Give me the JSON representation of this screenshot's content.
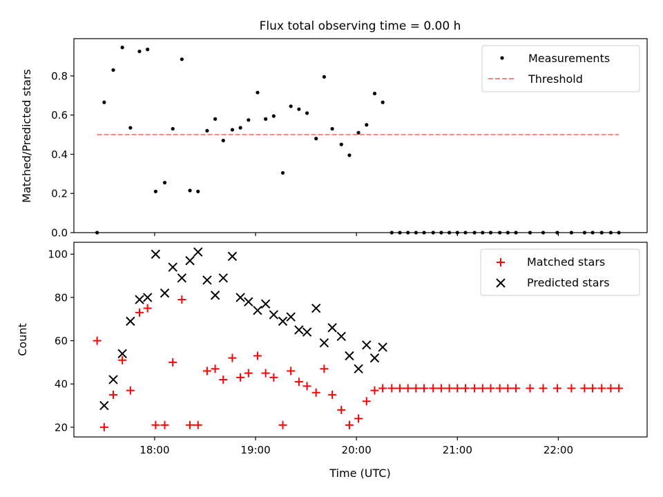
{
  "title": "Flux total observing time = 0.00 h",
  "chart_data": [
    {
      "type": "scatter",
      "ylabel": "Matched/Predicted stars",
      "xlabel": "",
      "xlim_hours": [
        17.2,
        22.88
      ],
      "ylim": [
        0,
        0.99
      ],
      "yticks": [
        0.0,
        0.2,
        0.4,
        0.6,
        0.8
      ],
      "ytick_labels": [
        "0.0",
        "0.2",
        "0.4",
        "0.6",
        "0.8"
      ],
      "grid": false,
      "legend": {
        "placement": "top-right",
        "items": [
          {
            "label": "Measurements",
            "marker": "dot",
            "color": "#000000"
          },
          {
            "label": "Threshold",
            "marker": "dashed-line",
            "color": "#ff7f7f"
          }
        ]
      },
      "series": [
        {
          "name": "Measurements",
          "color": "#000000",
          "marker": "dot",
          "x": [
            17.43,
            17.5,
            17.59,
            17.68,
            17.76,
            17.85,
            17.93,
            18.01,
            18.1,
            18.18,
            18.27,
            18.35,
            18.43,
            18.52,
            18.6,
            18.68,
            18.77,
            18.85,
            18.93,
            19.02,
            19.1,
            19.18,
            19.27,
            19.35,
            19.43,
            19.51,
            19.6,
            19.68,
            19.76,
            19.85,
            19.93,
            20.02,
            20.1,
            20.18,
            20.26,
            20.35,
            20.43,
            20.51,
            20.59,
            20.67,
            20.76,
            20.84,
            20.92,
            21.0,
            21.08,
            21.17,
            21.25,
            21.33,
            21.42,
            21.5,
            21.58,
            21.72,
            21.85,
            21.99,
            22.13,
            22.26,
            22.34,
            22.43,
            22.52,
            22.6
          ],
          "y": [
            0.0,
            0.665,
            0.83,
            0.945,
            0.535,
            0.925,
            0.935,
            0.21,
            0.255,
            0.53,
            0.885,
            0.215,
            0.21,
            0.52,
            0.58,
            0.47,
            0.525,
            0.535,
            0.575,
            0.715,
            0.58,
            0.595,
            0.305,
            0.645,
            0.63,
            0.61,
            0.48,
            0.795,
            0.53,
            0.45,
            0.395,
            0.51,
            0.55,
            0.71,
            0.665,
            0,
            0,
            0,
            0,
            0,
            0,
            0,
            0,
            0,
            0,
            0,
            0,
            0,
            0,
            0,
            0,
            0,
            0,
            0,
            0,
            0,
            0,
            0,
            0,
            0
          ]
        },
        {
          "name": "Threshold",
          "color": "#ff7f7f",
          "style": "dashed",
          "x": [
            17.43,
            22.6
          ],
          "y": [
            0.5,
            0.5
          ]
        }
      ]
    },
    {
      "type": "scatter",
      "ylabel": "Count",
      "xlabel": "Time (UTC)",
      "xlim_hours": [
        17.2,
        22.88
      ],
      "xticks_hours": [
        18,
        19,
        20,
        21,
        22
      ],
      "xtick_labels": [
        "18:00",
        "19:00",
        "20:00",
        "21:00",
        "22:00"
      ],
      "ylim": [
        15.5,
        105.5
      ],
      "yticks": [
        20,
        40,
        60,
        80,
        100
      ],
      "ytick_labels": [
        "20",
        "40",
        "60",
        "80",
        "100"
      ],
      "grid": false,
      "legend": {
        "placement": "top-right",
        "items": [
          {
            "label": "Matched stars",
            "marker": "plus",
            "color": "#ff0000"
          },
          {
            "label": "Predicted stars",
            "marker": "x",
            "color": "#000000"
          }
        ]
      },
      "series": [
        {
          "name": "Matched stars",
          "color": "#ff0000",
          "marker": "plus",
          "x": [
            17.43,
            17.5,
            17.59,
            17.68,
            17.76,
            17.85,
            17.93,
            18.01,
            18.1,
            18.18,
            18.27,
            18.35,
            18.43,
            18.52,
            18.6,
            18.68,
            18.77,
            18.85,
            18.93,
            19.02,
            19.1,
            19.18,
            19.27,
            19.35,
            19.43,
            19.51,
            19.6,
            19.68,
            19.76,
            19.85,
            19.93,
            20.02,
            20.1,
            20.18,
            20.26,
            20.35,
            20.43,
            20.51,
            20.59,
            20.67,
            20.76,
            20.84,
            20.92,
            21.0,
            21.08,
            21.17,
            21.25,
            21.33,
            21.42,
            21.5,
            21.58,
            21.72,
            21.85,
            21.99,
            22.13,
            22.26,
            22.34,
            22.43,
            22.52,
            22.6
          ],
          "y": [
            60,
            20,
            35,
            51,
            37,
            73,
            75,
            21,
            21,
            50,
            79,
            21,
            21,
            46,
            47,
            42,
            52,
            43,
            45,
            53,
            45,
            43,
            21,
            46,
            41,
            39,
            36,
            47,
            35,
            28,
            21,
            24,
            32,
            37,
            38,
            38,
            38,
            38,
            38,
            38,
            38,
            38,
            38,
            38,
            38,
            38,
            38,
            38,
            38,
            38,
            38,
            38,
            38,
            38,
            38,
            38,
            38,
            38,
            38,
            38
          ]
        },
        {
          "name": "Predicted stars",
          "color": "#000000",
          "marker": "x",
          "x": [
            17.5,
            17.59,
            17.68,
            17.76,
            17.85,
            17.93,
            18.01,
            18.1,
            18.18,
            18.27,
            18.35,
            18.43,
            18.52,
            18.6,
            18.68,
            18.77,
            18.85,
            18.93,
            19.02,
            19.1,
            19.18,
            19.27,
            19.35,
            19.43,
            19.51,
            19.6,
            19.68,
            19.76,
            19.85,
            19.93,
            20.02,
            20.1,
            20.18,
            20.26
          ],
          "y": [
            30,
            42,
            54,
            69,
            79,
            80,
            100,
            82,
            94,
            89,
            97,
            101,
            88,
            81,
            89,
            99,
            80,
            78,
            74,
            77,
            72,
            69,
            71,
            65,
            64,
            75,
            59,
            66,
            62,
            53,
            47,
            58,
            52,
            57
          ]
        }
      ]
    }
  ]
}
